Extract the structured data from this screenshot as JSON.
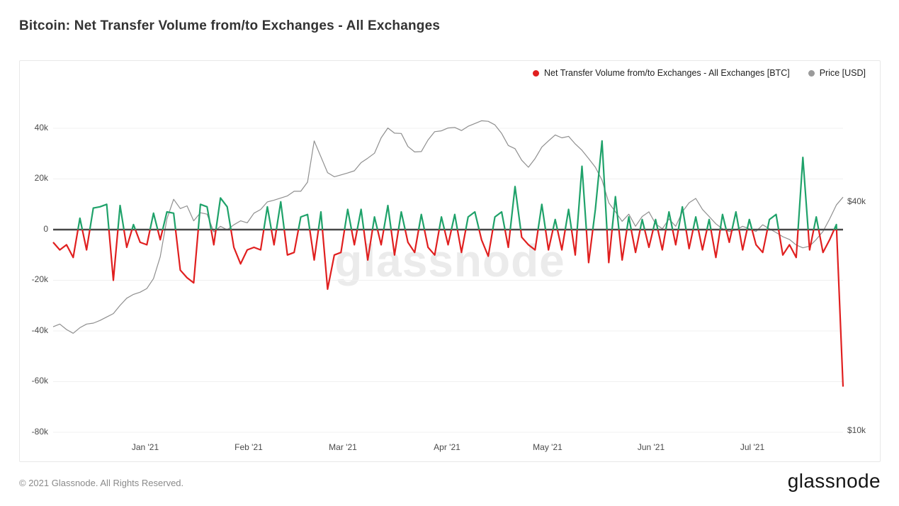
{
  "page": {
    "title": "Bitcoin: Net Transfer Volume from/to Exchanges - All Exchanges",
    "footer": {
      "copyright": "© 2021 Glassnode. All Rights Reserved.",
      "brand": "glassnode"
    }
  },
  "chart_data": {
    "type": "line",
    "title": "Bitcoin: Net Transfer Volume from/to Exchanges - All Exchanges",
    "watermark": "glassnode",
    "grid": "horizontal",
    "zero_line": true,
    "legend_position": "top-right",
    "legend": [
      {
        "label": "Net Transfer Volume from/to Exchanges - All Exchanges [BTC]",
        "color": "#e01f1f"
      },
      {
        "label": "Price [USD]",
        "color": "#9b9b9b"
      }
    ],
    "x_axis": {
      "start_date": "2020-12-04",
      "end_date": "2021-07-28",
      "interval_days": 2,
      "tick_labels": [
        "Jan '21",
        "Feb '21",
        "Mar '21",
        "Apr '21",
        "May '21",
        "Jun '21",
        "Jul '21"
      ]
    },
    "left_axis": {
      "title": "Net Transfer Volume [BTC]",
      "range": [
        -80000,
        45000
      ],
      "ticks": [
        {
          "label": "40k",
          "value": 40000
        },
        {
          "label": "20k",
          "value": 20000
        },
        {
          "label": "0",
          "value": 0
        },
        {
          "label": "-20k",
          "value": -20000
        },
        {
          "label": "-40k",
          "value": -40000
        },
        {
          "label": "-60k",
          "value": -60000
        },
        {
          "label": "-80k",
          "value": -80000
        }
      ]
    },
    "right_axis": {
      "title": "Price [USD]",
      "scale": "log",
      "ticks": [
        {
          "label": "$40k",
          "value": 40000
        },
        {
          "label": "$10k",
          "value": 10000
        }
      ]
    },
    "series": [
      {
        "name": "Net Transfer Volume from/to Exchanges - All Exchanges [BTC]",
        "axis": "left",
        "unit": "BTC",
        "color_positive": "#1fa26a",
        "color_negative": "#e01f1f",
        "values": [
          -5000,
          -8000,
          -6000,
          -11000,
          4500,
          -8000,
          8500,
          9000,
          10000,
          -20000,
          9500,
          -7000,
          2000,
          -5000,
          -6000,
          6500,
          -4000,
          7000,
          6500,
          -16000,
          -19000,
          -21000,
          10000,
          9000,
          -6000,
          12500,
          9000,
          -7000,
          -13500,
          -8000,
          -7000,
          -8000,
          9000,
          -6000,
          11000,
          -10000,
          -9000,
          5000,
          6000,
          -12000,
          7000,
          -23500,
          -10000,
          -9000,
          8000,
          -6000,
          8000,
          -12000,
          5000,
          -6000,
          9500,
          -10000,
          7000,
          -5000,
          -9000,
          6000,
          -7000,
          -10000,
          5000,
          -6000,
          6000,
          -9000,
          5000,
          7000,
          -4000,
          -10500,
          5000,
          7000,
          -7000,
          17000,
          -3000,
          -6000,
          -8000,
          10000,
          -8000,
          4000,
          -8000,
          8000,
          -10000,
          25000,
          -13000,
          8000,
          35000,
          -13000,
          13000,
          -12000,
          5000,
          -9000,
          4000,
          -7000,
          4000,
          -8000,
          7000,
          -6000,
          9000,
          -7500,
          5000,
          -8000,
          4000,
          -11000,
          6000,
          -5000,
          7000,
          -8000,
          4000,
          -6000,
          -9000,
          4000,
          6000,
          -10000,
          -6000,
          -11000,
          28500,
          -8000,
          5000,
          -9000,
          -4000,
          2000,
          -62000
        ]
      },
      {
        "name": "Price [USD]",
        "axis": "right",
        "unit": "USD",
        "color": "#8f8f8f",
        "values": [
          18500,
          18800,
          18200,
          17800,
          18400,
          18800,
          18900,
          19200,
          19600,
          20000,
          21000,
          21900,
          22400,
          22700,
          23200,
          24600,
          28000,
          35000,
          39300,
          37200,
          37800,
          34600,
          36300,
          36000,
          32400,
          33500,
          32800,
          33800,
          34600,
          34200,
          36200,
          37000,
          38700,
          39100,
          39600,
          40100,
          41200,
          41200,
          43500,
          55500,
          50500,
          46000,
          44900,
          45400,
          45900,
          46500,
          48800,
          50100,
          51600,
          56500,
          59900,
          58100,
          58000,
          53700,
          52000,
          52100,
          55800,
          58600,
          58900,
          59900,
          60100,
          59000,
          60500,
          61500,
          62500,
          62300,
          61000,
          58000,
          54000,
          53000,
          49500,
          47500,
          50000,
          53500,
          55500,
          57500,
          56500,
          57000,
          54500,
          52500,
          50000,
          47500,
          44000,
          38500,
          36500,
          34500,
          36000,
          33500,
          35500,
          36500,
          34000,
          33000,
          35000,
          33500,
          36500,
          38500,
          39500,
          37000,
          35500,
          34000,
          33000,
          32500,
          32800,
          33500,
          33000,
          32500,
          33800,
          33000,
          32300,
          31500,
          31000,
          30000,
          29500,
          29800,
          31000,
          32500,
          35000,
          38000,
          39800
        ]
      }
    ]
  }
}
